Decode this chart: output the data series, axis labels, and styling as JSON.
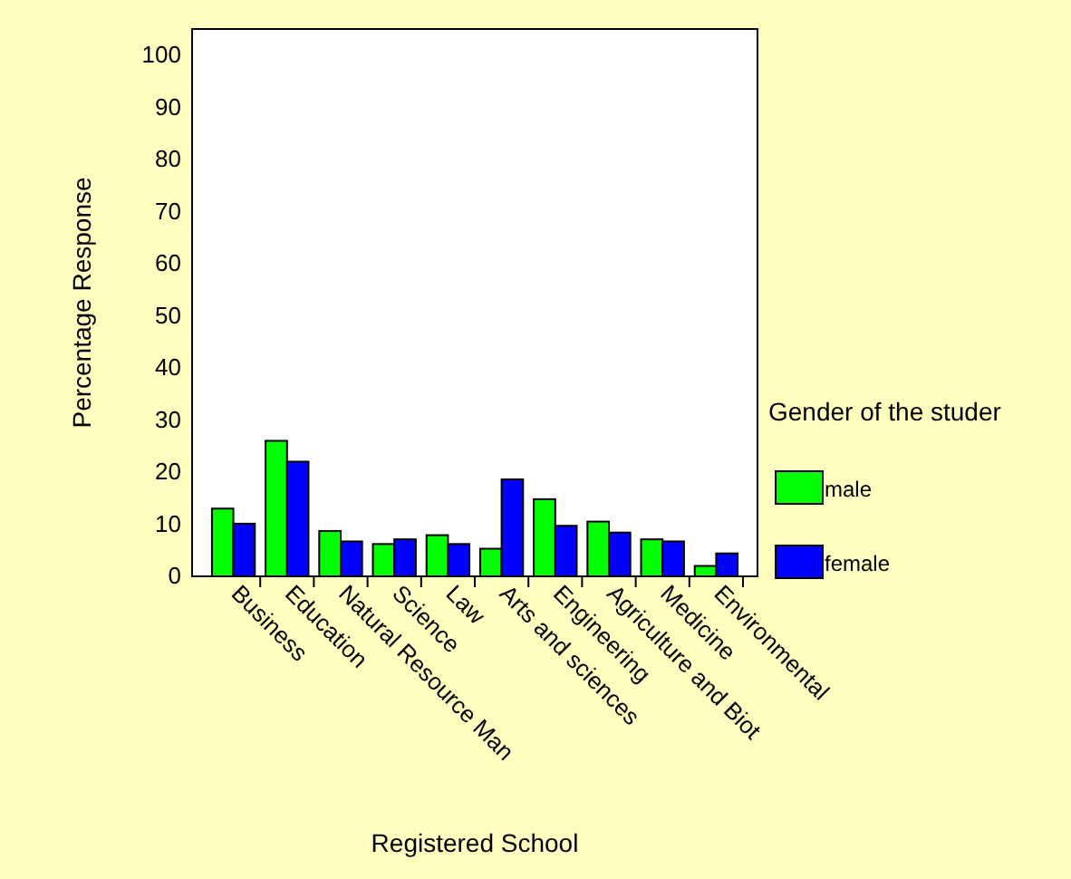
{
  "chart_data": {
    "type": "bar",
    "xlabel": "Registered School",
    "ylabel": "Percentage Response",
    "legend_title": "Gender of the studer",
    "categories": [
      "Business",
      "Education",
      "Natural Resource Man",
      "Science",
      "Law",
      "Arts and sciences",
      "Engineering",
      "Agriculture and Biot",
      "Medicine",
      "Environmental"
    ],
    "series": [
      {
        "name": "male",
        "color": "#00ff00",
        "values": [
          13.0,
          26.0,
          8.7,
          6.2,
          7.9,
          5.3,
          14.8,
          10.5,
          7.1,
          2.0
        ]
      },
      {
        "name": "female",
        "color": "#0000ff",
        "values": [
          10.1,
          22.0,
          6.7,
          7.1,
          6.2,
          18.6,
          9.7,
          8.4,
          6.7,
          4.4
        ]
      }
    ],
    "ylim": [
      0,
      105
    ],
    "yticks": [
      0,
      10,
      20,
      30,
      40,
      50,
      60,
      70,
      80,
      90,
      100
    ],
    "grid": false,
    "legend": "right"
  }
}
